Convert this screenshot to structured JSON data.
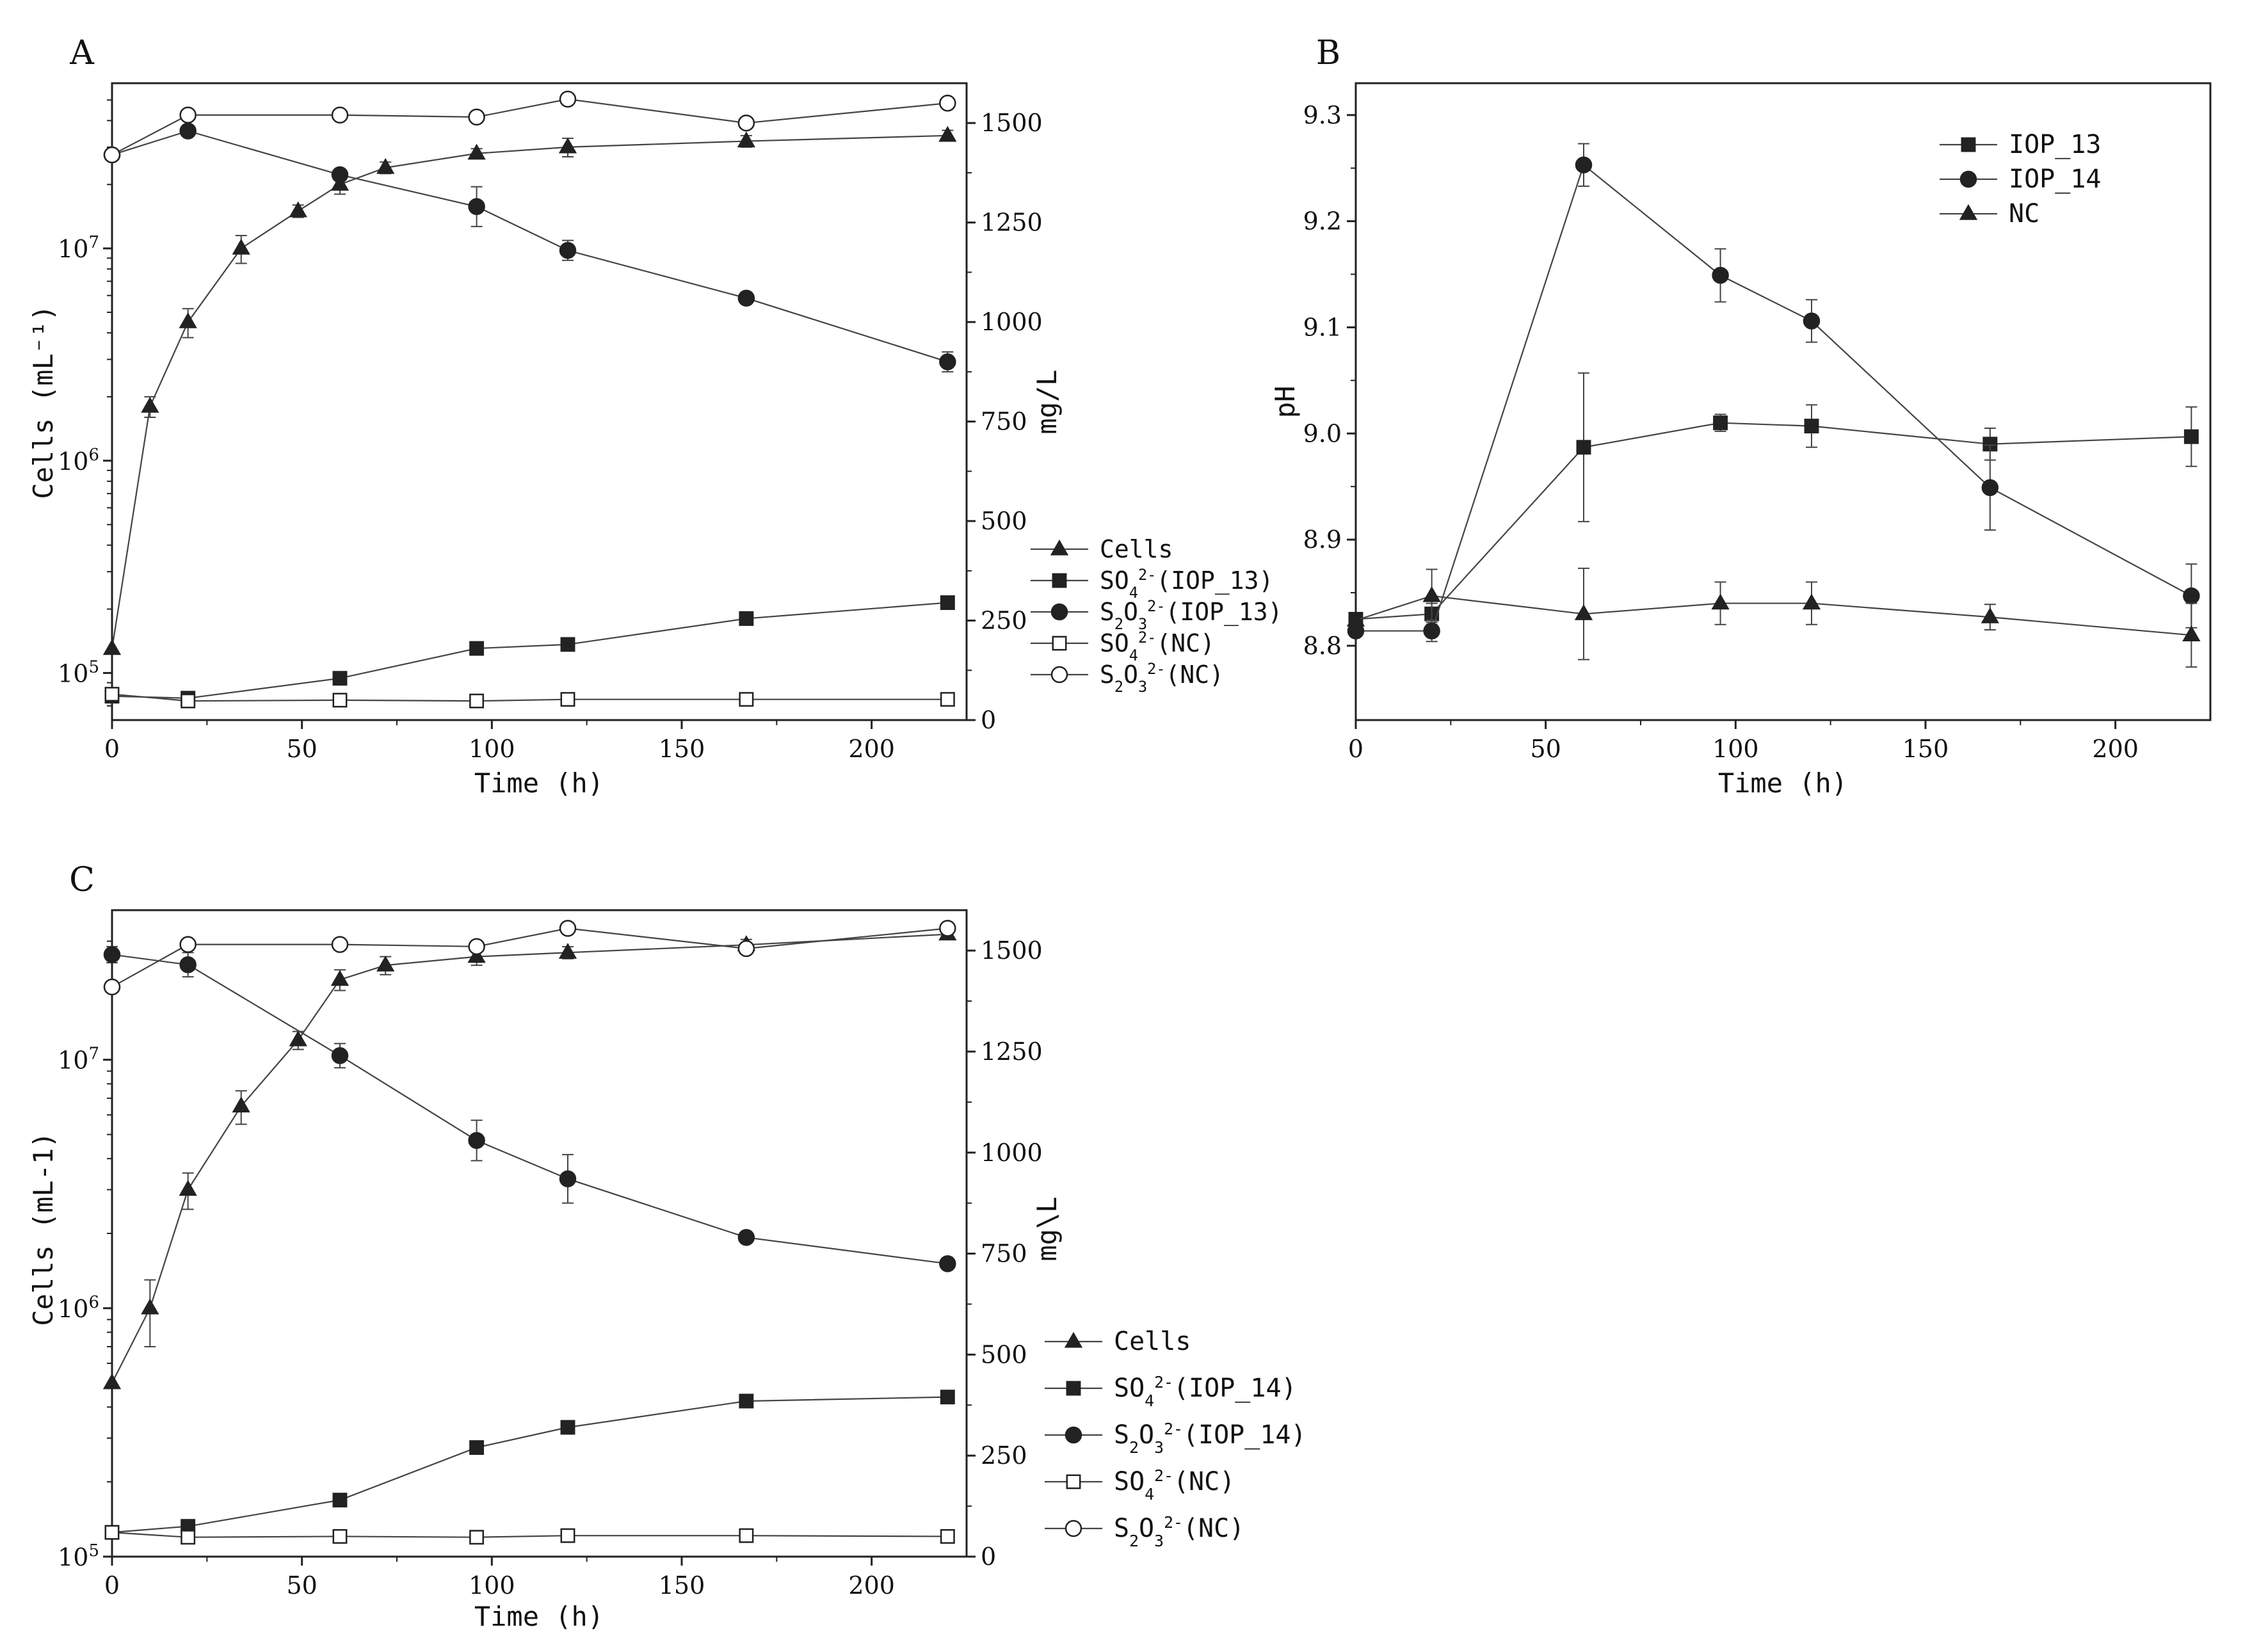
{
  "chart_data": [
    {
      "id": "A",
      "panel_label": "A",
      "type": "line",
      "title": "",
      "xlabel": "Time (h)",
      "ylabel_left": "Cells (mL⁻¹)",
      "ylabel_right": "mg/L",
      "x_ticks": [
        0,
        50,
        100,
        150,
        200
      ],
      "xlim": [
        0,
        225
      ],
      "left_axis": {
        "scale": "log",
        "ylim": [
          60000,
          60000000
        ],
        "ticks": [
          {
            "value": 100000,
            "base": "10",
            "exp": "5"
          },
          {
            "value": 1000000,
            "base": "10",
            "exp": "6"
          },
          {
            "value": 10000000,
            "base": "10",
            "exp": "7"
          }
        ]
      },
      "right_axis": {
        "scale": "linear",
        "ylim": [
          0,
          1600
        ],
        "ticks": [
          0,
          250,
          500,
          750,
          1000,
          1250,
          1500
        ]
      },
      "legend_position": "bottom-right",
      "series": [
        {
          "name": "Cells",
          "legend": [
            [
              "Cells",
              ""
            ]
          ],
          "axis": "left",
          "marker": "triangle",
          "filled": true,
          "x": [
            0,
            10,
            20,
            34,
            49,
            60,
            72,
            96,
            120,
            167,
            220
          ],
          "y": [
            130000,
            1800000,
            4500000,
            10000000,
            15000000,
            20000000,
            24000000,
            28000000,
            30000000,
            32000000,
            34000000
          ],
          "err": [
            0,
            200000,
            700000,
            1500000,
            1000000,
            2000000,
            1500000,
            1500000,
            3000000,
            2000000,
            2000000
          ]
        },
        {
          "name": "SO4^2-(IOP_13)",
          "legend": [
            [
              "SO",
              ""
            ],
            [
              "4",
              "sub"
            ],
            [
              "2-",
              "sup"
            ],
            [
              "(IOP_13)",
              ""
            ]
          ],
          "axis": "right",
          "marker": "square",
          "filled": true,
          "x": [
            0,
            20,
            60,
            96,
            120,
            167,
            220
          ],
          "y": [
            60,
            55,
            105,
            180,
            190,
            255,
            295
          ],
          "err": [
            0,
            5,
            8,
            8,
            8,
            10,
            10
          ]
        },
        {
          "name": "S2O3^2-(IOP_13)",
          "legend": [
            [
              "S",
              ""
            ],
            [
              "2",
              "sub"
            ],
            [
              "O",
              ""
            ],
            [
              "3",
              "sub"
            ],
            [
              "2-",
              "sup"
            ],
            [
              "(IOP_13)",
              ""
            ]
          ],
          "axis": "right",
          "marker": "circle",
          "filled": true,
          "x": [
            0,
            20,
            60,
            96,
            120,
            167,
            220
          ],
          "y": [
            1420,
            1480,
            1370,
            1290,
            1180,
            1060,
            900
          ],
          "err": [
            0,
            10,
            10,
            50,
            25,
            15,
            25
          ]
        },
        {
          "name": "SO4^2-(NC)",
          "legend": [
            [
              "SO",
              ""
            ],
            [
              "4",
              "sub"
            ],
            [
              "2-",
              "sup"
            ],
            [
              "(NC)",
              ""
            ]
          ],
          "axis": "right",
          "marker": "square",
          "filled": false,
          "x": [
            0,
            20,
            60,
            96,
            120,
            167,
            220
          ],
          "y": [
            65,
            48,
            50,
            48,
            52,
            52,
            52
          ],
          "err": [
            0,
            3,
            3,
            3,
            3,
            3,
            3
          ]
        },
        {
          "name": "S2O3^2-(NC)",
          "legend": [
            [
              "S",
              ""
            ],
            [
              "2",
              "sub"
            ],
            [
              "O",
              ""
            ],
            [
              "3",
              "sub"
            ],
            [
              "2-",
              "sup"
            ],
            [
              "(NC)",
              ""
            ]
          ],
          "axis": "right",
          "marker": "circle",
          "filled": false,
          "x": [
            0,
            20,
            60,
            96,
            120,
            167,
            220
          ],
          "y": [
            1420,
            1520,
            1520,
            1515,
            1560,
            1500,
            1550
          ],
          "err": [
            0,
            5,
            5,
            5,
            5,
            5,
            5
          ]
        }
      ]
    },
    {
      "id": "B",
      "panel_label": "B",
      "type": "line",
      "title": "",
      "xlabel": "Time (h)",
      "ylabel_left": "pH",
      "x_ticks": [
        0,
        50,
        100,
        150,
        200
      ],
      "xlim": [
        0,
        225
      ],
      "left_axis": {
        "scale": "linear",
        "ylim": [
          8.73,
          9.33
        ],
        "ticks": [
          8.8,
          8.9,
          9.0,
          9.1,
          9.2,
          9.3
        ],
        "tick_labels": [
          "8.8",
          "8.9",
          "9.0",
          "9.1",
          "9.2",
          "9.3"
        ]
      },
      "legend_position": "top-right",
      "series": [
        {
          "name": "IOP_13",
          "legend": [
            [
              "IOP_13",
              ""
            ]
          ],
          "axis": "left",
          "marker": "square",
          "filled": true,
          "x": [
            0,
            20,
            60,
            96,
            120,
            167,
            220
          ],
          "y": [
            8.825,
            8.83,
            8.987,
            9.01,
            9.007,
            8.99,
            8.997
          ],
          "err": [
            0,
            0.01,
            0.07,
            0.008,
            0.02,
            0.015,
            0.028
          ]
        },
        {
          "name": "IOP_14",
          "legend": [
            [
              "IOP_14",
              ""
            ]
          ],
          "axis": "left",
          "marker": "circle",
          "filled": true,
          "x": [
            0,
            20,
            60,
            96,
            120,
            167,
            220
          ],
          "y": [
            8.814,
            8.814,
            9.253,
            9.149,
            9.106,
            8.949,
            8.847
          ],
          "err": [
            0,
            0.01,
            0.02,
            0.025,
            0.02,
            0.04,
            0.03
          ]
        },
        {
          "name": "NC",
          "legend": [
            [
              "NC",
              ""
            ]
          ],
          "axis": "left",
          "marker": "triangle",
          "filled": true,
          "x": [
            0,
            20,
            60,
            96,
            120,
            167,
            220
          ],
          "y": [
            8.824,
            8.847,
            8.83,
            8.84,
            8.84,
            8.827,
            8.81
          ],
          "err": [
            0,
            0.025,
            0.043,
            0.02,
            0.02,
            0.012,
            0.03
          ]
        }
      ]
    },
    {
      "id": "C",
      "panel_label": "C",
      "type": "line",
      "title": "",
      "xlabel": "Time (h)",
      "ylabel_left": "Cells (mL-1)",
      "ylabel_right": "mg\\L",
      "x_ticks": [
        0,
        50,
        100,
        150,
        200
      ],
      "xlim": [
        0,
        225
      ],
      "left_axis": {
        "scale": "log",
        "ylim": [
          100000,
          40000000
        ],
        "ticks": [
          {
            "value": 100000,
            "base": "10",
            "exp": "5"
          },
          {
            "value": 1000000,
            "base": "10",
            "exp": "6"
          },
          {
            "value": 10000000,
            "base": "10",
            "exp": "7"
          }
        ]
      },
      "right_axis": {
        "scale": "linear",
        "ylim": [
          0,
          1600
        ],
        "ticks": [
          0,
          250,
          500,
          750,
          1000,
          1250,
          1500
        ]
      },
      "legend_position": "bottom-right",
      "series": [
        {
          "name": "Cells",
          "legend": [
            [
              "Cells",
              ""
            ]
          ],
          "axis": "left",
          "marker": "triangle",
          "filled": true,
          "x": [
            0,
            10,
            20,
            34,
            49,
            60,
            72,
            96,
            120,
            167,
            220
          ],
          "y": [
            500000,
            1000000,
            3000000,
            6500000,
            12000000,
            21000000,
            24000000,
            26000000,
            27000000,
            29000000,
            32000000
          ],
          "err": [
            0,
            300000,
            500000,
            1000000,
            1000000,
            2000000,
            2000000,
            2000000,
            1500000,
            1500000,
            1500000
          ]
        },
        {
          "name": "SO4^2-(IOP_14)",
          "legend": [
            [
              "SO",
              ""
            ],
            [
              "4",
              "sub"
            ],
            [
              "2-",
              "sup"
            ],
            [
              "(IOP_14)",
              ""
            ]
          ],
          "axis": "right",
          "marker": "square",
          "filled": true,
          "x": [
            0,
            20,
            60,
            96,
            120,
            167,
            220
          ],
          "y": [
            60,
            75,
            140,
            270,
            320,
            385,
            395
          ],
          "err": [
            0,
            5,
            15,
            10,
            10,
            10,
            10
          ]
        },
        {
          "name": "S2O3^2-(IOP_14)",
          "legend": [
            [
              "S",
              ""
            ],
            [
              "2",
              "sub"
            ],
            [
              "O",
              ""
            ],
            [
              "3",
              "sub"
            ],
            [
              "2-",
              "sup"
            ],
            [
              "(IOP_14)",
              ""
            ]
          ],
          "axis": "right",
          "marker": "circle",
          "filled": true,
          "x": [
            0,
            20,
            60,
            96,
            120,
            167,
            220
          ],
          "y": [
            1490,
            1465,
            1240,
            1030,
            935,
            790,
            725
          ],
          "err": [
            20,
            30,
            30,
            50,
            60,
            10,
            10
          ]
        },
        {
          "name": "SO4^2-(NC)",
          "legend": [
            [
              "SO",
              ""
            ],
            [
              "4",
              "sub"
            ],
            [
              "2-",
              "sup"
            ],
            [
              "(NC)",
              ""
            ]
          ],
          "axis": "right",
          "marker": "square",
          "filled": false,
          "x": [
            0,
            20,
            60,
            96,
            120,
            167,
            220
          ],
          "y": [
            60,
            48,
            50,
            48,
            52,
            52,
            50
          ],
          "err": [
            0,
            3,
            3,
            3,
            3,
            3,
            3
          ]
        },
        {
          "name": "S2O3^2-(NC)",
          "legend": [
            [
              "S",
              ""
            ],
            [
              "2",
              "sub"
            ],
            [
              "O",
              ""
            ],
            [
              "3",
              "sub"
            ],
            [
              "2-",
              "sup"
            ],
            [
              "(NC)",
              ""
            ]
          ],
          "axis": "right",
          "marker": "circle",
          "filled": false,
          "x": [
            0,
            20,
            60,
            96,
            120,
            167,
            220
          ],
          "y": [
            1410,
            1515,
            1515,
            1510,
            1555,
            1505,
            1555
          ],
          "err": [
            0,
            5,
            5,
            5,
            5,
            5,
            5
          ]
        }
      ]
    }
  ]
}
